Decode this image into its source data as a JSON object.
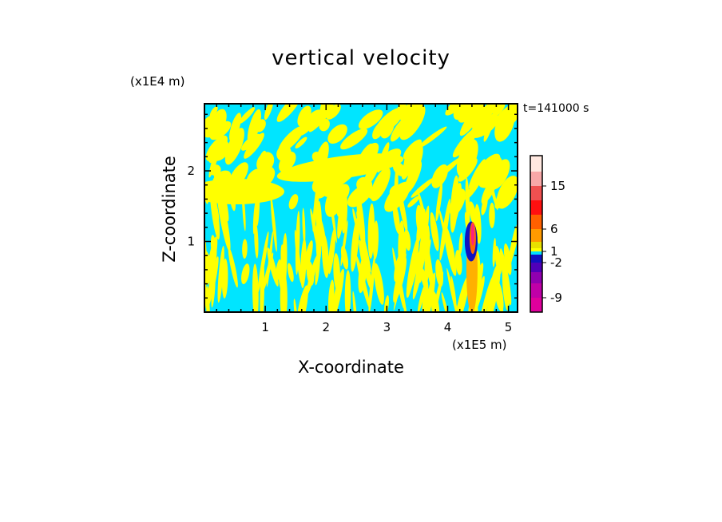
{
  "chart_data": {
    "type": "contour",
    "title": "vertical velocity",
    "xlabel": "X-coordinate",
    "ylabel": "Z-coordinate",
    "x_unit": "(x1E5 m)",
    "z_unit": "(x1E4 m)",
    "time_label": "t=141000 s",
    "xlim": [
      0,
      5.15
    ],
    "ylim": [
      0,
      2.95
    ],
    "x_ticks": [
      1,
      2,
      3,
      4,
      5
    ],
    "y_ticks": [
      1,
      2
    ],
    "colorbar": {
      "levels": [
        -12,
        -9,
        -6,
        -4,
        -2,
        -1,
        1,
        2,
        4,
        6,
        9,
        12,
        15,
        18,
        21
      ],
      "labels": [
        "15",
        "6",
        "1",
        "-2",
        "-9"
      ],
      "colors": [
        "#e0009c",
        "#c000a8",
        "#9000b0",
        "#5000b8",
        "#1010c0",
        "#00e0ff",
        "#ffff00",
        "#e8e000",
        "#ff9a00",
        "#ff6000",
        "#ff1010",
        "#f05050",
        "#f8a8a8",
        "#ffe8e0"
      ]
    },
    "fields": {
      "background": "#00e5ff",
      "positive_color": "#ffff00",
      "updraft_color": "#ff6a00",
      "downdraft_color": "#1010c0",
      "core_color": "#ff2080"
    }
  }
}
